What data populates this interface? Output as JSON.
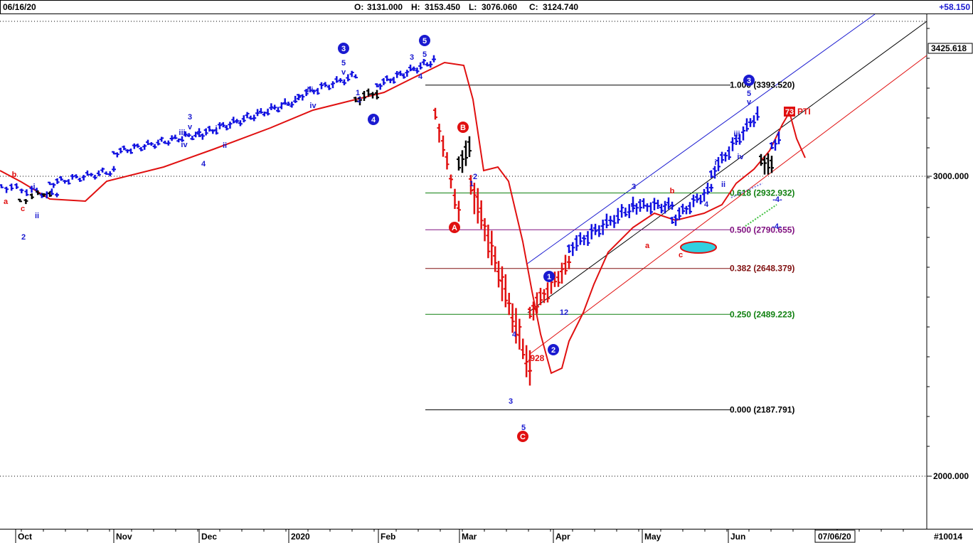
{
  "header": {
    "date": "06/16/20",
    "open_label": "O:",
    "open": "3131.000",
    "high_label": "H:",
    "high": "3153.450",
    "low_label": "L:",
    "low": "3076.060",
    "close_label": "C:",
    "close": "3124.740",
    "change": "+58.150"
  },
  "footer": {
    "end_date": "07/06/20",
    "code": "#10014"
  },
  "colors": {
    "up_bar": "#1010e0",
    "down_bar": "#e01010",
    "neutral_bar": "#000000",
    "moving_average": "#e01010",
    "channel_upper": "#1a1ad0",
    "channel_mid": "#000000",
    "channel_lower": "#e01010",
    "target_ellipse": "#30d0e0",
    "pti_badge": "#e01010"
  },
  "chart_data": {
    "type": "bar",
    "subtype": "ohlc",
    "y_scale": "log",
    "ylim": [
      1700,
      3900
    ],
    "y_ticks": [
      {
        "value": 3000,
        "label": "3000.000"
      },
      {
        "value": 2000,
        "label": "2000.000"
      }
    ],
    "last_price_tag": {
      "value": 3425.618,
      "label": "3425.618"
    },
    "x_months": [
      "Oct",
      "Nov",
      "Dec",
      "2020",
      "Feb",
      "Mar",
      "Apr",
      "May",
      "Jun"
    ],
    "grid": "dotted horizontal",
    "fib_levels": [
      {
        "ratio": "1.000",
        "value": 3393.52,
        "label": "1.000 (3393.520)",
        "color": "#000000"
      },
      {
        "ratio": "0.618",
        "value": 2932.932,
        "label": "0.618 (2932.932)",
        "color": "#108010"
      },
      {
        "ratio": "0.500",
        "value": 2790.655,
        "label": "0.500 (2790.655)",
        "color": "#801080"
      },
      {
        "ratio": "0.382",
        "value": 2648.379,
        "label": "0.382 (2648.379)",
        "color": "#801010"
      },
      {
        "ratio": "0.250",
        "value": 2489.223,
        "label": "0.250 (2489.223)",
        "color": "#108010"
      },
      {
        "ratio": "0.000",
        "value": 2187.791,
        "label": "0.000 (2187.791)",
        "color": "#000000"
      }
    ],
    "annotations": [
      {
        "text": "73",
        "badge": true
      },
      {
        "text": "PTI"
      },
      {
        "text": ".928"
      }
    ],
    "wave_labels": [
      {
        "text": "b",
        "style": "plain",
        "color": "red"
      },
      {
        "text": "a",
        "style": "plain",
        "color": "red"
      },
      {
        "text": "c",
        "style": "plain",
        "color": "red"
      },
      {
        "text": "2",
        "style": "plain",
        "color": "blue"
      },
      {
        "text": "i",
        "style": "plain",
        "color": "blue"
      },
      {
        "text": "ii",
        "style": "plain",
        "color": "blue"
      },
      {
        "text": "3",
        "style": "plain",
        "color": "blue"
      },
      {
        "text": "v",
        "style": "plain",
        "color": "blue"
      },
      {
        "text": "iii",
        "style": "plain",
        "color": "blue"
      },
      {
        "text": "iv",
        "style": "plain",
        "color": "blue"
      },
      {
        "text": "4",
        "style": "plain",
        "color": "blue"
      },
      {
        "text": "i",
        "style": "plain",
        "color": "blue"
      },
      {
        "text": "ii",
        "style": "plain",
        "color": "blue"
      },
      {
        "text": "3",
        "style": "circle",
        "color": "blue"
      },
      {
        "text": "5",
        "style": "plain",
        "color": "blue"
      },
      {
        "text": "v",
        "style": "plain",
        "color": "blue"
      },
      {
        "text": "iii",
        "style": "plain",
        "color": "blue"
      },
      {
        "text": "iv",
        "style": "plain",
        "color": "blue"
      },
      {
        "text": "1",
        "style": "plain",
        "color": "blue"
      },
      {
        "text": "2",
        "style": "plain",
        "color": "blue"
      },
      {
        "text": "4",
        "style": "circle",
        "color": "blue"
      },
      {
        "text": "3",
        "style": "plain",
        "color": "blue"
      },
      {
        "text": "5",
        "style": "plain",
        "color": "blue"
      },
      {
        "text": "4",
        "style": "plain",
        "color": "blue"
      },
      {
        "text": "5",
        "style": "circle",
        "color": "blue"
      },
      {
        "text": "B",
        "style": "circle",
        "color": "red"
      },
      {
        "text": "1",
        "style": "plain",
        "color": "blue"
      },
      {
        "text": "2",
        "style": "plain",
        "color": "blue"
      },
      {
        "text": "A",
        "style": "circle",
        "color": "red"
      },
      {
        "text": "4",
        "style": "plain",
        "color": "blue"
      },
      {
        "text": "3",
        "style": "plain",
        "color": "blue"
      },
      {
        "text": "5",
        "style": "plain",
        "color": "blue"
      },
      {
        "text": "C",
        "style": "circle",
        "color": "red"
      },
      {
        "text": "1",
        "style": "circle",
        "color": "blue"
      },
      {
        "text": "2",
        "style": "circle",
        "color": "blue"
      },
      {
        "text": "12",
        "style": "plain",
        "color": "blue"
      },
      {
        "text": "3",
        "style": "plain",
        "color": "blue"
      },
      {
        "text": "a",
        "style": "plain",
        "color": "red"
      },
      {
        "text": "b",
        "style": "plain",
        "color": "red"
      },
      {
        "text": "c",
        "style": "plain",
        "color": "red"
      },
      {
        "text": "4",
        "style": "plain",
        "color": "blue"
      },
      {
        "text": "i",
        "style": "plain",
        "color": "blue"
      },
      {
        "text": "ii",
        "style": "plain",
        "color": "blue"
      },
      {
        "text": "iii",
        "style": "plain",
        "color": "blue"
      },
      {
        "text": "iv",
        "style": "plain",
        "color": "blue"
      },
      {
        "text": "3",
        "style": "circle",
        "color": "blue"
      },
      {
        "text": "5",
        "style": "plain",
        "color": "blue"
      },
      {
        "text": "v",
        "style": "plain",
        "color": "blue"
      },
      {
        "text": "-4-",
        "style": "plain",
        "color": "blue"
      },
      {
        "text": "-4-",
        "style": "plain",
        "color": "blue"
      }
    ],
    "series": [
      {
        "name": "",
        "kind": "ohlc",
        "x": [
          "2019-09-16",
          "2019-09-23",
          "2019-09-30",
          "2019-10-07",
          "2019-10-14",
          "2019-10-21",
          "2019-10-28",
          "2019-11-04",
          "2019-11-11",
          "2019-11-18",
          "2019-11-25",
          "2019-12-02",
          "2019-12-09",
          "2019-12-16",
          "2019-12-23",
          "2019-12-30",
          "2020-01-06",
          "2020-01-13",
          "2020-01-20",
          "2020-01-27",
          "2020-02-03",
          "2020-02-10",
          "2020-02-17",
          "2020-02-24",
          "2020-03-02",
          "2020-03-09",
          "2020-03-16",
          "2020-03-23",
          "2020-03-30",
          "2020-04-06",
          "2020-04-13",
          "2020-04-20",
          "2020-04-27",
          "2020-05-04",
          "2020-05-11",
          "2020-05-18",
          "2020-05-25",
          "2020-06-01",
          "2020-06-08",
          "2020-06-15"
        ],
        "close": [
          3007,
          2961,
          2952,
          2970,
          2986,
          3022,
          3066,
          3093,
          3120,
          3110,
          3141,
          3145,
          3168,
          3221,
          3240,
          3235,
          3265,
          3329,
          3295,
          3225,
          3328,
          3380,
          3337,
          2954,
          2972,
          2711,
          2304,
          2541,
          2489,
          2790,
          2875,
          2837,
          2830,
          2930,
          2863,
          2955,
          3044,
          3193,
          3041,
          3125
        ]
      },
      {
        "name": "",
        "kind": "moving_average",
        "x": [
          "2019-09-16",
          "2019-10-07",
          "2019-11-04",
          "2019-12-02",
          "2020-01-06",
          "2020-02-03",
          "2020-02-17",
          "2020-03-02",
          "2020-03-16",
          "2020-03-23",
          "2020-04-06",
          "2020-04-20",
          "2020-05-04",
          "2020-05-18",
          "2020-06-01",
          "2020-06-15",
          "2020-06-29"
        ],
        "values": [
          3010,
          2955,
          3040,
          3110,
          3200,
          3270,
          3370,
          3050,
          2800,
          2250,
          2300,
          2500,
          2780,
          2820,
          2900,
          3300,
          3100
        ]
      }
    ]
  }
}
